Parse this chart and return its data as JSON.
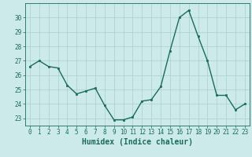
{
  "x": [
    0,
    1,
    2,
    3,
    4,
    5,
    6,
    7,
    8,
    9,
    10,
    11,
    12,
    13,
    14,
    15,
    16,
    17,
    18,
    19,
    20,
    21,
    22,
    23
  ],
  "y": [
    26.6,
    27.0,
    26.6,
    26.5,
    25.3,
    24.7,
    24.9,
    25.1,
    23.9,
    22.9,
    22.9,
    23.1,
    24.2,
    24.3,
    25.2,
    27.7,
    30.0,
    30.5,
    28.7,
    27.0,
    24.6,
    24.6,
    23.6,
    24.0
  ],
  "line_color": "#1a6b5a",
  "marker": "s",
  "marker_size": 2.0,
  "bg_color": "#cceaea",
  "grid_color": "#aacece",
  "xlabel": "Humidex (Indice chaleur)",
  "ylim": [
    22.5,
    31.0
  ],
  "yticks": [
    23,
    24,
    25,
    26,
    27,
    28,
    29,
    30
  ],
  "xticks": [
    0,
    1,
    2,
    3,
    4,
    5,
    6,
    7,
    8,
    9,
    10,
    11,
    12,
    13,
    14,
    15,
    16,
    17,
    18,
    19,
    20,
    21,
    22,
    23
  ],
  "tick_color": "#1a6b5a",
  "tick_fontsize": 5.5,
  "xlabel_fontsize": 7.0,
  "linewidth": 1.0
}
